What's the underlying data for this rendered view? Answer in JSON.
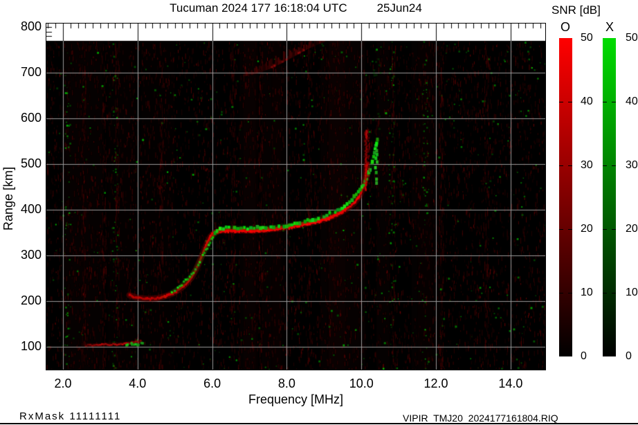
{
  "title": {
    "left": "Tucuman 2024 177 16:18:04 UTC",
    "right": "25Jun24"
  },
  "footer": {
    "rx_mask": "RxMask 11111111",
    "file": "VIPIR  TMJ20_2024177161804.RIQ"
  },
  "chart_data": {
    "type": "heatmap",
    "description": "VIPIR ionogram: echo SNR versus sounding frequency and virtual range, O and X polarization traces",
    "x_axis": {
      "label": "Frequency [MHz]",
      "ticks": [
        2,
        4,
        6,
        8,
        10,
        12,
        14
      ],
      "tick_labels": [
        "2.0",
        "4.0",
        "6.0",
        "8.0",
        "10.0",
        "12.0",
        "14.0"
      ],
      "range": [
        1.555,
        14.93
      ],
      "minor_tick_step": 0.2
    },
    "y_axis": {
      "label": "Range [km]",
      "ticks": [
        800,
        700,
        600,
        500,
        400,
        300,
        200,
        100
      ],
      "range": [
        50,
        807.5
      ],
      "minor_tick_step": 10
    },
    "colorbar": {
      "title": "SNR [dB]",
      "range": [
        0,
        50
      ],
      "ticks": [
        50,
        40,
        30,
        20,
        10,
        0
      ],
      "o_label": "O",
      "x_label": "X",
      "o_color": "#ff0000",
      "x_color": "#00dc00"
    },
    "background_color": "#000000",
    "grid_color": "#9a9a9a",
    "traces": {
      "o_mode_main": {
        "polarization": "O",
        "color": "#dd0000",
        "points_f_mhz_range_km": [
          [
            3.78,
            213
          ],
          [
            3.92,
            209
          ],
          [
            4.1,
            206
          ],
          [
            4.3,
            205
          ],
          [
            4.5,
            206
          ],
          [
            4.72,
            210
          ],
          [
            4.95,
            217
          ],
          [
            5.14,
            227
          ],
          [
            5.3,
            238
          ],
          [
            5.45,
            252
          ],
          [
            5.57,
            270
          ],
          [
            5.68,
            290
          ],
          [
            5.78,
            310
          ],
          [
            5.87,
            328
          ],
          [
            5.96,
            342
          ],
          [
            6.07,
            350
          ],
          [
            6.22,
            354
          ],
          [
            6.5,
            355
          ],
          [
            6.8,
            354
          ],
          [
            7.1,
            354
          ],
          [
            7.45,
            356
          ],
          [
            7.8,
            359
          ],
          [
            8.1,
            363
          ],
          [
            8.45,
            368
          ],
          [
            8.8,
            374
          ],
          [
            9.1,
            381
          ],
          [
            9.35,
            390
          ],
          [
            9.6,
            401
          ],
          [
            9.8,
            414
          ],
          [
            9.95,
            430
          ],
          [
            10.05,
            450
          ],
          [
            10.11,
            472
          ],
          [
            10.15,
            500
          ]
        ]
      },
      "x_mode_main": {
        "polarization": "X",
        "color": "#22cc22",
        "points_f_mhz_range_km": [
          [
            4.92,
            220
          ],
          [
            5.08,
            228
          ],
          [
            5.24,
            240
          ],
          [
            5.4,
            253
          ],
          [
            5.55,
            269
          ],
          [
            5.67,
            287
          ],
          [
            5.79,
            305
          ],
          [
            5.91,
            323
          ],
          [
            6.02,
            340
          ],
          [
            6.13,
            353
          ],
          [
            6.3,
            360
          ],
          [
            6.6,
            361
          ],
          [
            6.95,
            360
          ],
          [
            7.3,
            360
          ],
          [
            7.65,
            362
          ],
          [
            8.0,
            366
          ],
          [
            8.35,
            371
          ],
          [
            8.7,
            378
          ],
          [
            9.0,
            386
          ],
          [
            9.3,
            396
          ],
          [
            9.55,
            408
          ],
          [
            9.75,
            422
          ],
          [
            9.92,
            438
          ],
          [
            10.06,
            456
          ],
          [
            10.17,
            475
          ],
          [
            10.26,
            495
          ],
          [
            10.33,
            517
          ],
          [
            10.39,
            538
          ],
          [
            10.43,
            552
          ]
        ]
      },
      "o_mode_spike": {
        "f": 10.13,
        "r_range": [
          445,
          577
        ]
      },
      "x_mode_spike": {
        "f": 10.4,
        "r_range": [
          462,
          553
        ]
      },
      "sporadic_e_o": {
        "polarization": "O",
        "points_f_mhz_range_km": [
          [
            2.62,
            103
          ],
          [
            2.9,
            104
          ],
          [
            3.2,
            105
          ],
          [
            3.5,
            106
          ],
          [
            3.75,
            108
          ],
          [
            3.95,
            110
          ],
          [
            4.08,
            112
          ]
        ]
      },
      "sporadic_e_x": {
        "polarization": "X",
        "points_f_mhz_range_km": [
          [
            3.7,
            106
          ],
          [
            3.8,
            108
          ],
          [
            3.9,
            110
          ],
          [
            4.0,
            108
          ],
          [
            4.08,
            112
          ]
        ]
      },
      "second_hop_o": {
        "polarization": "O",
        "points_f_mhz_range_km": [
          [
            6.85,
            692
          ],
          [
            7.1,
            696
          ],
          [
            7.35,
            702
          ],
          [
            7.6,
            710
          ],
          [
            7.85,
            720
          ],
          [
            8.1,
            731
          ],
          [
            8.35,
            742
          ],
          [
            8.6,
            753
          ],
          [
            8.85,
            762
          ],
          [
            9.05,
            769
          ]
        ]
      }
    },
    "noise": {
      "red_streak_freqs": [
        2.55,
        3.1,
        3.45,
        4.62,
        6.55,
        7.3,
        8.6,
        10.85,
        12.15,
        13.35
      ],
      "green_column_freqs": [
        2.1,
        3.38,
        10.8,
        11.7
      ]
    }
  }
}
